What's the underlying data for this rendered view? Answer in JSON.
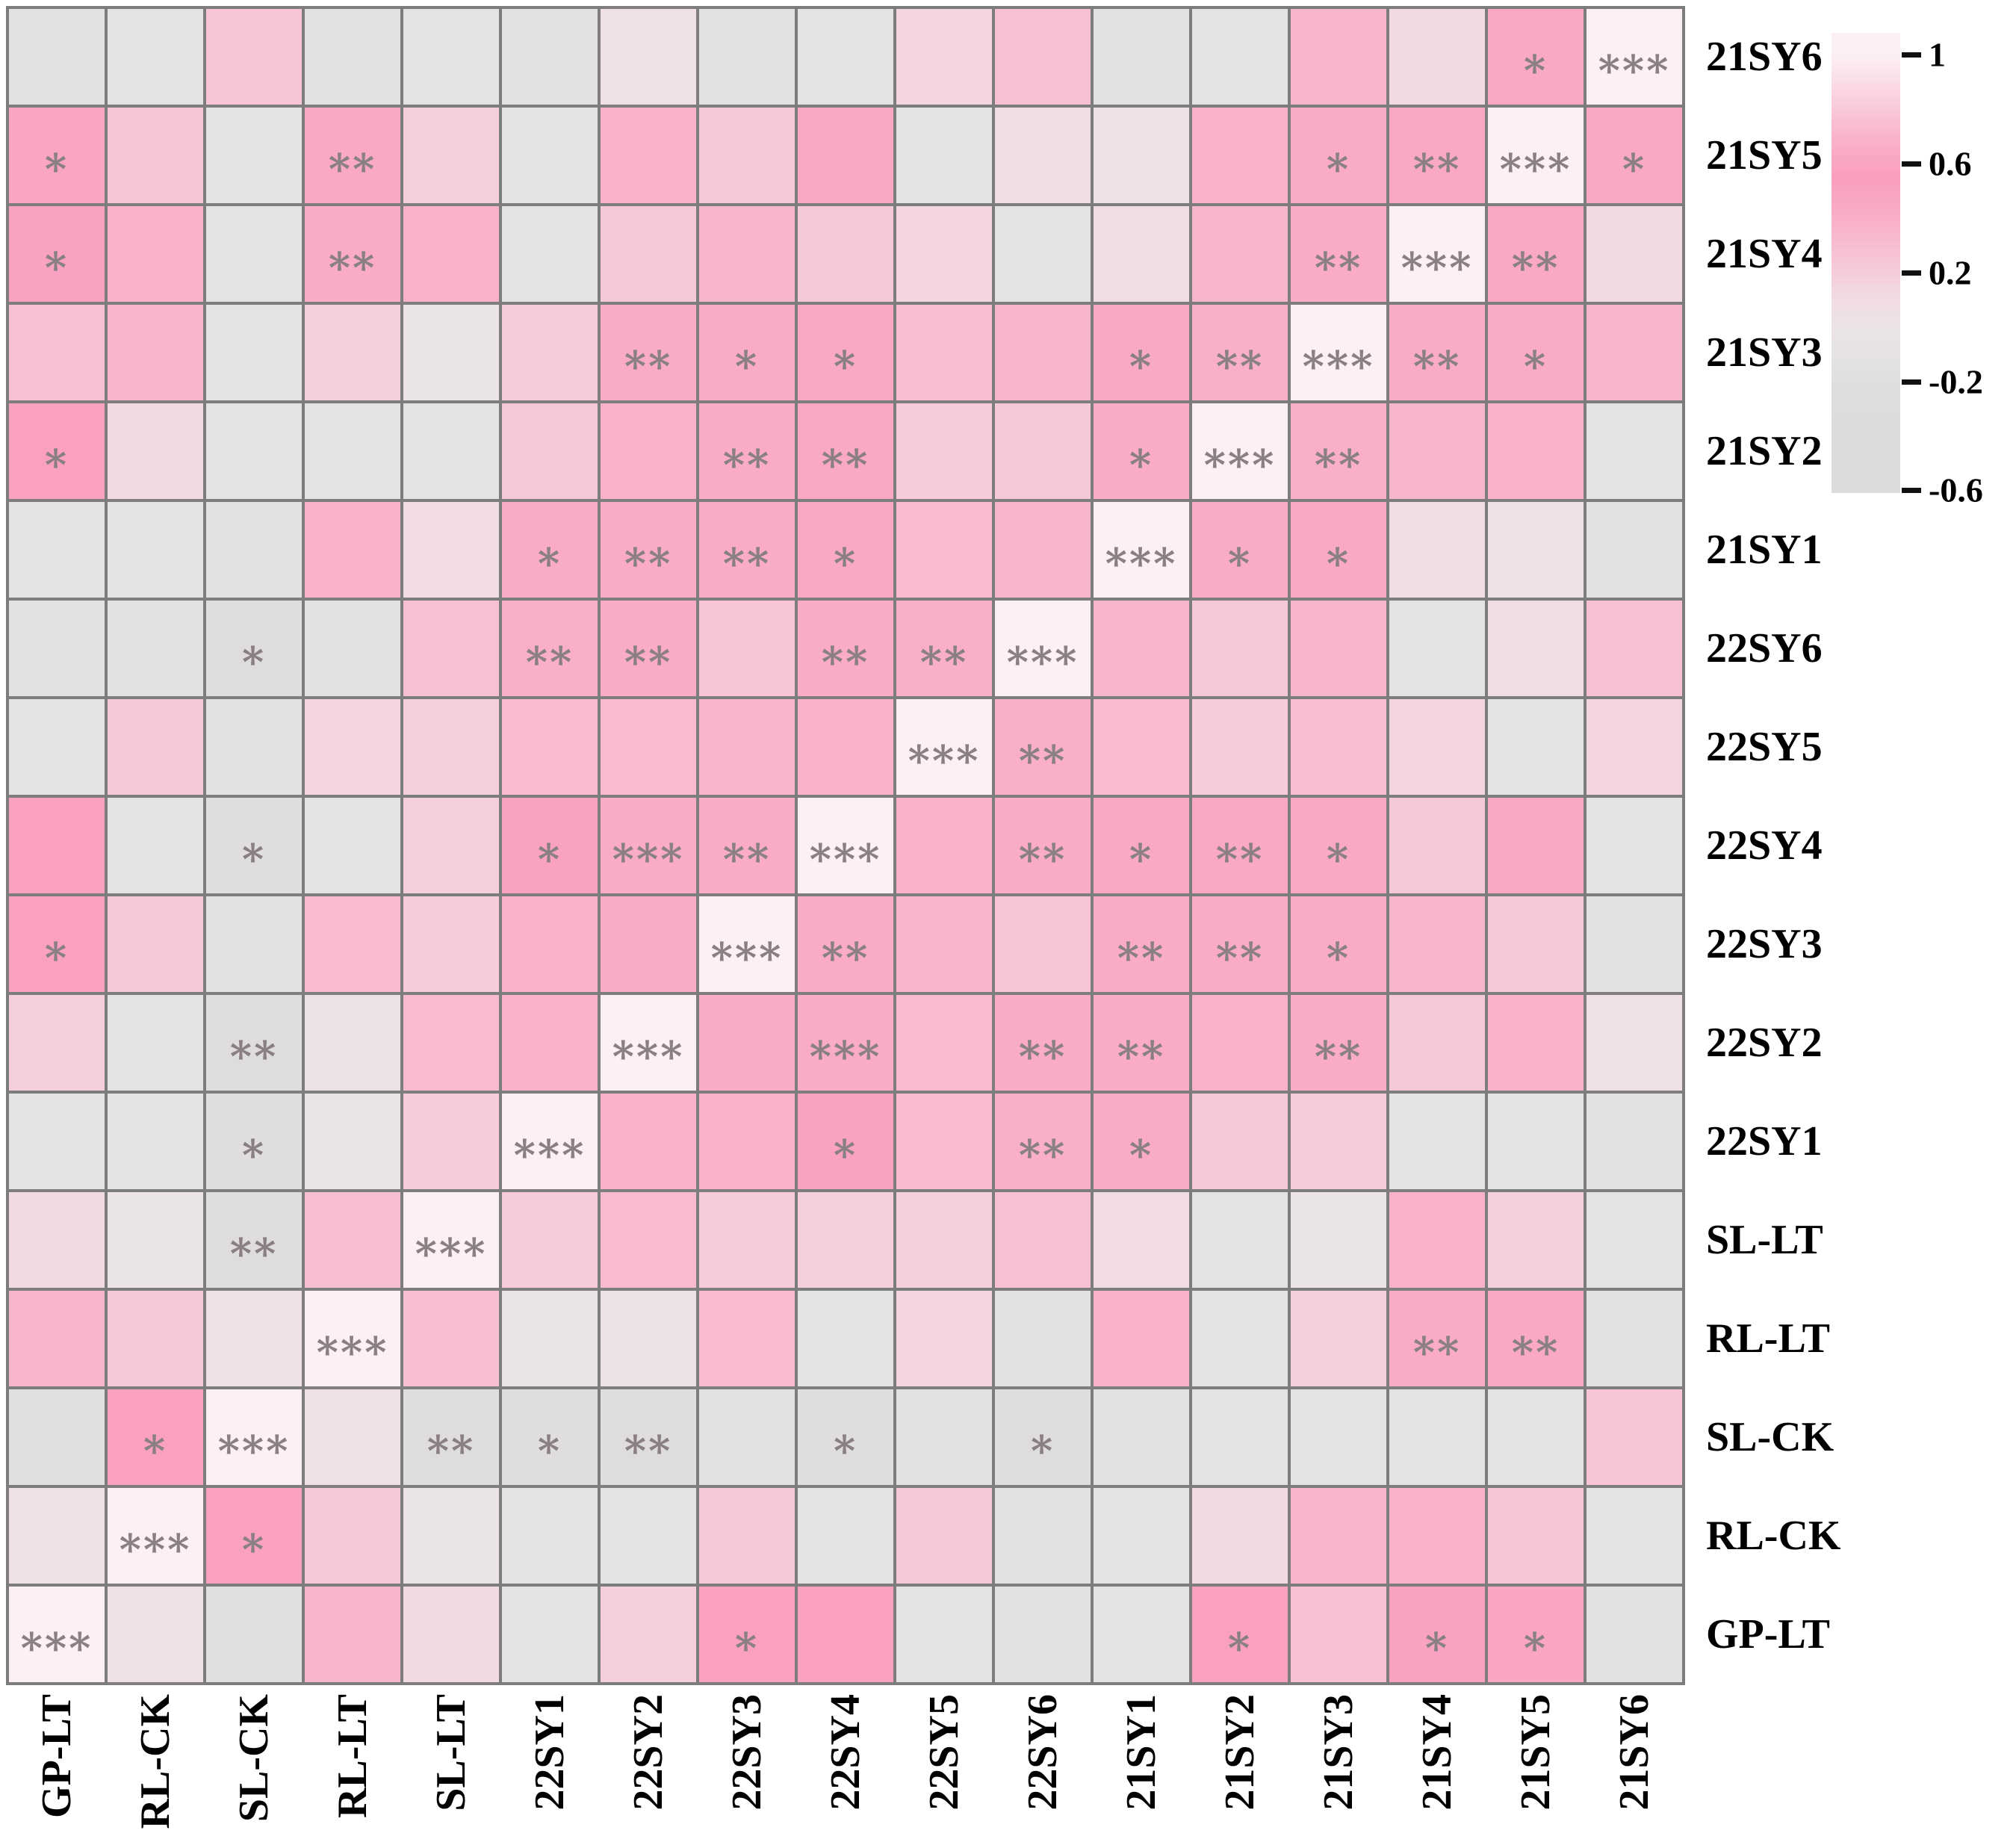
{
  "chart_data": {
    "type": "heatmap",
    "title": "",
    "x_categories": [
      "GP-LT",
      "RL-CK",
      "SL-CK",
      "RL-LT",
      "SL-LT",
      "22SY1",
      "22SY2",
      "22SY3",
      "22SY4",
      "22SY5",
      "22SY6",
      "21SY1",
      "21SY2",
      "21SY3",
      "21SY4",
      "21SY5",
      "21SY6"
    ],
    "y_categories": [
      "21SY6",
      "21SY5",
      "21SY4",
      "21SY3",
      "21SY2",
      "21SY1",
      "22SY6",
      "22SY5",
      "22SY4",
      "22SY3",
      "22SY2",
      "22SY1",
      "SL-LT",
      "RL-LT",
      "SL-CK",
      "RL-CK",
      "GP-LT"
    ],
    "matrix": [
      [
        -0.15,
        -0.1,
        0.25,
        -0.15,
        -0.12,
        -0.15,
        0.05,
        -0.15,
        -0.08,
        0.15,
        0.28,
        -0.15,
        -0.08,
        0.35,
        0.12,
        0.45,
        1.0
      ],
      [
        0.48,
        0.25,
        -0.12,
        0.45,
        0.18,
        -0.1,
        0.38,
        0.22,
        0.45,
        -0.12,
        0.08,
        0.05,
        0.38,
        0.42,
        0.45,
        1.0,
        0.45
      ],
      [
        0.5,
        0.38,
        -0.12,
        0.42,
        0.38,
        -0.08,
        0.22,
        0.35,
        0.22,
        0.15,
        -0.12,
        0.08,
        0.35,
        0.42,
        1.0,
        0.45,
        0.12
      ],
      [
        0.28,
        0.35,
        -0.12,
        0.18,
        0.0,
        0.2,
        0.42,
        0.42,
        0.45,
        0.3,
        0.35,
        0.45,
        0.4,
        1.0,
        0.42,
        0.42,
        0.35
      ],
      [
        0.52,
        0.12,
        -0.12,
        -0.08,
        -0.12,
        0.22,
        0.38,
        0.42,
        0.45,
        0.2,
        0.22,
        0.42,
        1.0,
        0.4,
        0.35,
        0.38,
        -0.08
      ],
      [
        -0.12,
        -0.12,
        -0.15,
        0.38,
        0.1,
        0.42,
        0.42,
        0.42,
        0.45,
        0.32,
        0.35,
        1.0,
        0.42,
        0.45,
        0.08,
        0.05,
        -0.15
      ],
      [
        -0.15,
        -0.15,
        -0.25,
        -0.15,
        0.28,
        0.4,
        0.42,
        0.25,
        0.42,
        0.4,
        1.0,
        0.35,
        0.22,
        0.35,
        -0.12,
        0.08,
        0.28
      ],
      [
        -0.12,
        0.22,
        -0.15,
        0.15,
        0.18,
        0.32,
        0.32,
        0.35,
        0.38,
        1.0,
        0.4,
        0.32,
        0.2,
        0.3,
        0.15,
        -0.12,
        0.15
      ],
      [
        0.52,
        -0.12,
        -0.22,
        -0.08,
        0.18,
        0.5,
        0.42,
        0.42,
        1.0,
        0.38,
        0.42,
        0.45,
        0.45,
        0.45,
        0.22,
        0.45,
        -0.08
      ],
      [
        0.52,
        0.22,
        -0.15,
        0.32,
        0.2,
        0.38,
        0.42,
        1.0,
        0.42,
        0.35,
        0.25,
        0.42,
        0.42,
        0.42,
        0.35,
        0.22,
        -0.15
      ],
      [
        0.18,
        -0.12,
        -0.25,
        0.02,
        0.32,
        0.38,
        1.0,
        0.42,
        0.42,
        0.32,
        0.42,
        0.42,
        0.38,
        0.42,
        0.22,
        0.38,
        0.05
      ],
      [
        -0.12,
        -0.12,
        -0.22,
        0.0,
        0.2,
        1.0,
        0.38,
        0.38,
        0.5,
        0.32,
        0.4,
        0.42,
        0.22,
        0.2,
        -0.08,
        -0.1,
        -0.15
      ],
      [
        0.12,
        0.0,
        -0.25,
        0.3,
        1.0,
        0.2,
        0.32,
        0.2,
        0.18,
        0.18,
        0.28,
        0.1,
        -0.12,
        0.0,
        0.38,
        0.18,
        -0.12
      ],
      [
        0.35,
        0.22,
        0.05,
        1.0,
        0.3,
        0.0,
        0.02,
        0.32,
        -0.08,
        0.15,
        -0.15,
        0.38,
        -0.08,
        0.18,
        0.42,
        0.45,
        -0.15
      ],
      [
        -0.18,
        0.52,
        1.0,
        0.05,
        -0.25,
        -0.22,
        -0.25,
        -0.15,
        -0.22,
        -0.15,
        -0.25,
        -0.15,
        -0.12,
        -0.12,
        -0.12,
        -0.12,
        0.25
      ],
      [
        0.05,
        1.0,
        0.52,
        0.22,
        0.0,
        -0.12,
        -0.12,
        0.22,
        -0.12,
        0.22,
        -0.15,
        -0.12,
        0.12,
        0.35,
        0.38,
        0.25,
        -0.1
      ],
      [
        1.0,
        0.05,
        -0.18,
        0.35,
        0.12,
        -0.12,
        0.18,
        0.52,
        0.52,
        -0.12,
        -0.15,
        -0.12,
        0.52,
        0.28,
        0.5,
        0.48,
        -0.15
      ]
    ],
    "significance": [
      [
        "",
        "",
        "",
        "",
        "",
        "",
        "",
        "",
        "",
        "",
        "",
        "",
        "",
        "",
        "",
        "*",
        "***"
      ],
      [
        "*",
        "",
        "",
        "**",
        "",
        "",
        "",
        "",
        "",
        "",
        "",
        "",
        "",
        "*",
        "**",
        "***",
        "*"
      ],
      [
        "*",
        "",
        "",
        "**",
        "",
        "",
        "",
        "",
        "",
        "",
        "",
        "",
        "",
        "**",
        "***",
        "**",
        ""
      ],
      [
        "",
        "",
        "",
        "",
        "",
        "",
        "**",
        "*",
        "*",
        "",
        "",
        "*",
        "**",
        "***",
        "**",
        "*",
        ""
      ],
      [
        "*",
        "",
        "",
        "",
        "",
        "",
        "",
        "**",
        "**",
        "",
        "",
        "*",
        "***",
        "**",
        "",
        "",
        ""
      ],
      [
        "",
        "",
        "",
        "",
        "",
        "*",
        "**",
        "**",
        "*",
        "",
        "",
        "***",
        "*",
        "*",
        "",
        "",
        ""
      ],
      [
        "",
        "",
        "*",
        "",
        "",
        "**",
        "**",
        "",
        "**",
        "**",
        "***",
        "",
        "",
        "",
        "",
        "",
        ""
      ],
      [
        "",
        "",
        "",
        "",
        "",
        "",
        "",
        "",
        "",
        "***",
        "**",
        "",
        "",
        "",
        "",
        "",
        ""
      ],
      [
        "",
        "",
        "*",
        "",
        "",
        "*",
        "***",
        "**",
        "***",
        "",
        "**",
        "*",
        "**",
        "*",
        "",
        "",
        ""
      ],
      [
        "*",
        "",
        "",
        "",
        "",
        "",
        "",
        "***",
        "**",
        "",
        "",
        "**",
        "**",
        "*",
        "",
        "",
        ""
      ],
      [
        "",
        "",
        "**",
        "",
        "",
        "",
        "***",
        "",
        "***",
        "",
        "**",
        "**",
        "",
        "**",
        "",
        "",
        ""
      ],
      [
        "",
        "",
        "*",
        "",
        "",
        "***",
        "",
        "",
        "*",
        "",
        "**",
        "*",
        "",
        "",
        "",
        "",
        ""
      ],
      [
        "",
        "",
        "**",
        "",
        "***",
        "",
        "",
        "",
        "",
        "",
        "",
        "",
        "",
        "",
        "",
        "",
        ""
      ],
      [
        "",
        "",
        "",
        "***",
        "",
        "",
        "",
        "",
        "",
        "",
        "",
        "",
        "",
        "",
        "**",
        "**",
        ""
      ],
      [
        "",
        "*",
        "***",
        "",
        "**",
        "*",
        "**",
        "",
        "*",
        "",
        "*",
        "",
        "",
        "",
        "",
        "",
        ""
      ],
      [
        "",
        "***",
        "*",
        "",
        "",
        "",
        "",
        "",
        "",
        "",
        "",
        "",
        "",
        "",
        "",
        "",
        ""
      ],
      [
        "***",
        "",
        "",
        "",
        "",
        "",
        "",
        "*",
        "",
        "",
        "",
        "",
        "*",
        "",
        "*",
        "*",
        ""
      ]
    ],
    "colorbar": {
      "tick_labels": [
        "1",
        "0.6",
        "0.2",
        "-0.2",
        "-0.6"
      ],
      "tick_values": [
        1,
        0.6,
        0.2,
        -0.2,
        -0.6
      ],
      "bar_top_value": 1.08,
      "bar_bottom_value": -0.61
    },
    "colormap_stops": [
      [
        -0.6,
        "#dcdada"
      ],
      [
        -0.25,
        "#dedcdc"
      ],
      [
        -0.12,
        "#e4e2e2"
      ],
      [
        0,
        "#ebe4e6"
      ],
      [
        0.12,
        "#f1dae1"
      ],
      [
        0.2,
        "#f6ccda"
      ],
      [
        0.42,
        "#f9abc7"
      ],
      [
        0.55,
        "#fa9dbf"
      ],
      [
        0.7,
        "#fab3cc"
      ],
      [
        0.85,
        "#fbd3e0"
      ],
      [
        1,
        "#fcf0f4"
      ]
    ],
    "grid_color": "#7d7d7d",
    "star_color": "#8a7f85",
    "legend_position": "top-right",
    "grid_on": true
  }
}
